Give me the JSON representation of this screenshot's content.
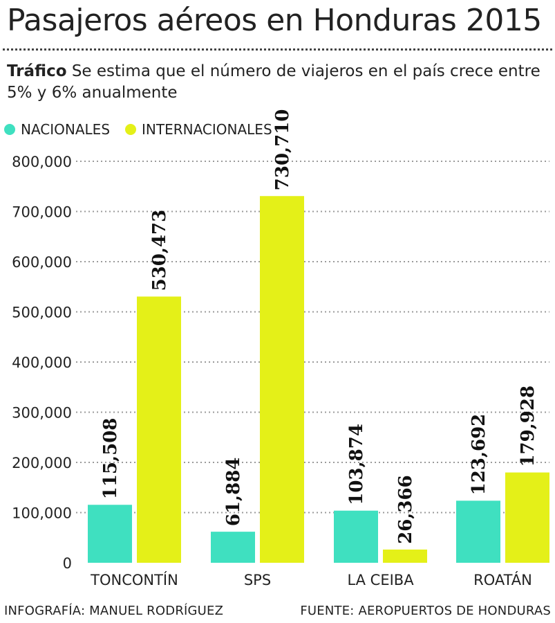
{
  "title": "Pasajeros aéreos en Honduras 2015",
  "subtitle": {
    "lead": "Tráfico",
    "text": " Se estima que el número de viajeros en el país crece entre 5% y 6% anualmente"
  },
  "footer": {
    "credit": "INFOGRAFÍA: MANUEL RODRÍGUEZ",
    "source": "FUENTE: AEROPUERTOS DE HONDURAS"
  },
  "colors": {
    "nacionales": "#3fe0c0",
    "internacionales": "#e4f018",
    "grid": "#9a9a9a",
    "text": "#222222"
  },
  "chart_data": {
    "type": "bar",
    "categories": [
      "TONCONTÍN",
      "SPS",
      "LA CEIBA",
      "ROATÁN"
    ],
    "series": [
      {
        "name": "NACIONALES",
        "values": [
          115508,
          61884,
          103874,
          123692
        ]
      },
      {
        "name": "INTERNACIONALES",
        "values": [
          530473,
          730710,
          26366,
          179928
        ]
      }
    ],
    "value_labels": [
      [
        "115,508",
        "61,884",
        "103,874",
        "123,692"
      ],
      [
        "530,473",
        "730,710",
        "26,366",
        "179,928"
      ]
    ],
    "ylim": [
      0,
      800000
    ],
    "yticks": [
      0,
      100000,
      200000,
      300000,
      400000,
      500000,
      600000,
      700000,
      800000
    ],
    "ytick_labels": [
      "0",
      "100,000",
      "200,000",
      "300,000",
      "400,000",
      "500,000",
      "600,000",
      "700,000",
      "800,000"
    ],
    "grid": true,
    "legend_position": "top-left",
    "xlabel": "",
    "ylabel": ""
  }
}
